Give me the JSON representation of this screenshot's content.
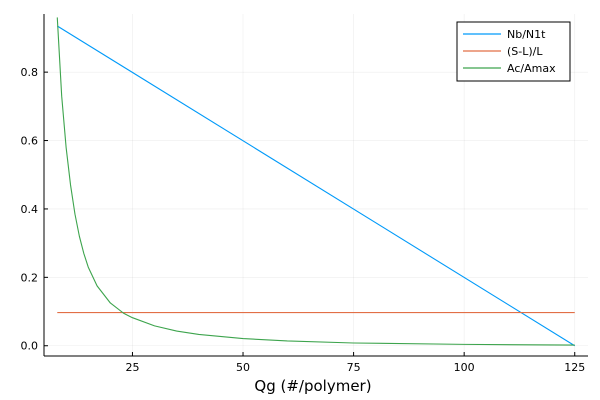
{
  "chart_data": {
    "type": "line",
    "title": "",
    "xlabel": "Qg (#/polymer)",
    "ylabel": "",
    "xlim": [
      5,
      128
    ],
    "ylim": [
      -0.03,
      0.97
    ],
    "xticks": [
      25,
      50,
      75,
      100,
      125
    ],
    "yticks": [
      0.0,
      0.2,
      0.4,
      0.6,
      0.8
    ],
    "xtick_labels": [
      "25",
      "50",
      "75",
      "100",
      "125"
    ],
    "ytick_labels": [
      "0.0",
      "0.2",
      "0.4",
      "0.6",
      "0.8"
    ],
    "grid": true,
    "legend_position": "top-right",
    "series": [
      {
        "name": "Nb/N1t",
        "color": "#009af9",
        "x": [
          8,
          125
        ],
        "y": [
          0.935,
          0.0
        ]
      },
      {
        "name": "(S-L)/L",
        "color": "#e26f46",
        "x": [
          8,
          125
        ],
        "y": [
          0.097,
          0.097
        ]
      },
      {
        "name": "Ac/Amax",
        "color": "#3da44d",
        "x": [
          8,
          9,
          10,
          11,
          12,
          13,
          14,
          15,
          17,
          20,
          23,
          25,
          30,
          35,
          40,
          50,
          60,
          75,
          100,
          125
        ],
        "y": [
          0.96,
          0.73,
          0.58,
          0.47,
          0.385,
          0.32,
          0.27,
          0.23,
          0.175,
          0.125,
          0.095,
          0.082,
          0.058,
          0.043,
          0.033,
          0.021,
          0.014,
          0.008,
          0.004,
          0.002
        ]
      }
    ]
  }
}
